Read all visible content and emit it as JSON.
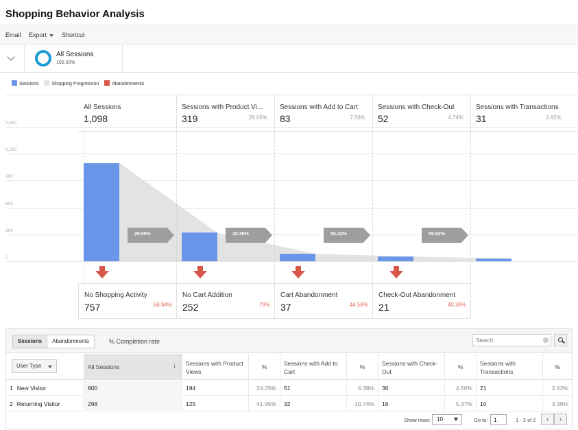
{
  "page_title": "Shopping Behavior Analysis",
  "toolbar": {
    "email": "Email",
    "export": "Export",
    "shortcut": "Shortcut"
  },
  "segment": {
    "name": "All Sessions",
    "percent": "100.00%",
    "color": "#1e9bd7"
  },
  "legend": [
    {
      "label": "Sessions",
      "color": "#6a96ea"
    },
    {
      "label": "Shopping Progression",
      "color": "#e3e3e3"
    },
    {
      "label": "Abandonments",
      "color": "#d9574a"
    }
  ],
  "funnel": {
    "y_ticks": [
      "1,500",
      "1,200",
      "900",
      "600",
      "300",
      "0"
    ],
    "y_max": 1500,
    "stages": [
      {
        "label": "All Sessions",
        "value": 1098,
        "value_label": "1,098",
        "pct": ""
      },
      {
        "label": "Sessions with Product Vi...",
        "value": 319,
        "value_label": "319",
        "pct": "29.05%"
      },
      {
        "label": "Sessions with Add to Cart",
        "value": 83,
        "value_label": "83",
        "pct": "7.56%"
      },
      {
        "label": "Sessions with Check-Out",
        "value": 52,
        "value_label": "52",
        "pct": "4.74%"
      },
      {
        "label": "Sessions with Transactions",
        "value": 31,
        "value_label": "31",
        "pct": "2.82%"
      }
    ],
    "progression": [
      "29.05%",
      "20.38%",
      "55.42%",
      "59.62%"
    ],
    "abandonments": [
      {
        "label": "No Shopping Activity",
        "value": "757",
        "pct": "68.94%"
      },
      {
        "label": "No Cart Addition",
        "value": "252",
        "pct": "79%"
      },
      {
        "label": "Cart Abandonment",
        "value": "37",
        "pct": "44.58%"
      },
      {
        "label": "Check-Out Abandonment",
        "value": "21",
        "pct": "40.38%"
      }
    ]
  },
  "table": {
    "tabs": [
      "Sessions",
      "Abandonments"
    ],
    "completion_rate": "% Completion rate",
    "search_placeholder": "Search",
    "user_type_label": "User Type",
    "headers": [
      "All Sessions",
      "Sessions with Product Views",
      "%",
      "Sessions with Add to Cart",
      "%",
      "Sessions with Check-Out",
      "%",
      "Sessions with Transactions",
      "%"
    ],
    "rows": [
      {
        "idx": "1",
        "name": "New Visitor",
        "cells": [
          "800",
          "194",
          "24.25%",
          "51",
          "6.38%",
          "36",
          "4.50%",
          "21",
          "2.62%"
        ]
      },
      {
        "idx": "2",
        "name": "Returning Visitor",
        "cells": [
          "298",
          "125",
          "41.95%",
          "32",
          "10.74%",
          "16",
          "5.37%",
          "10",
          "3.36%"
        ]
      }
    ],
    "pager": {
      "show_rows_label": "Show rows:",
      "show_rows_value": "10",
      "goto_label": "Go to:",
      "goto_value": "1",
      "range": "1 - 2 of 2",
      "prev": "‹",
      "next": "›"
    }
  }
}
